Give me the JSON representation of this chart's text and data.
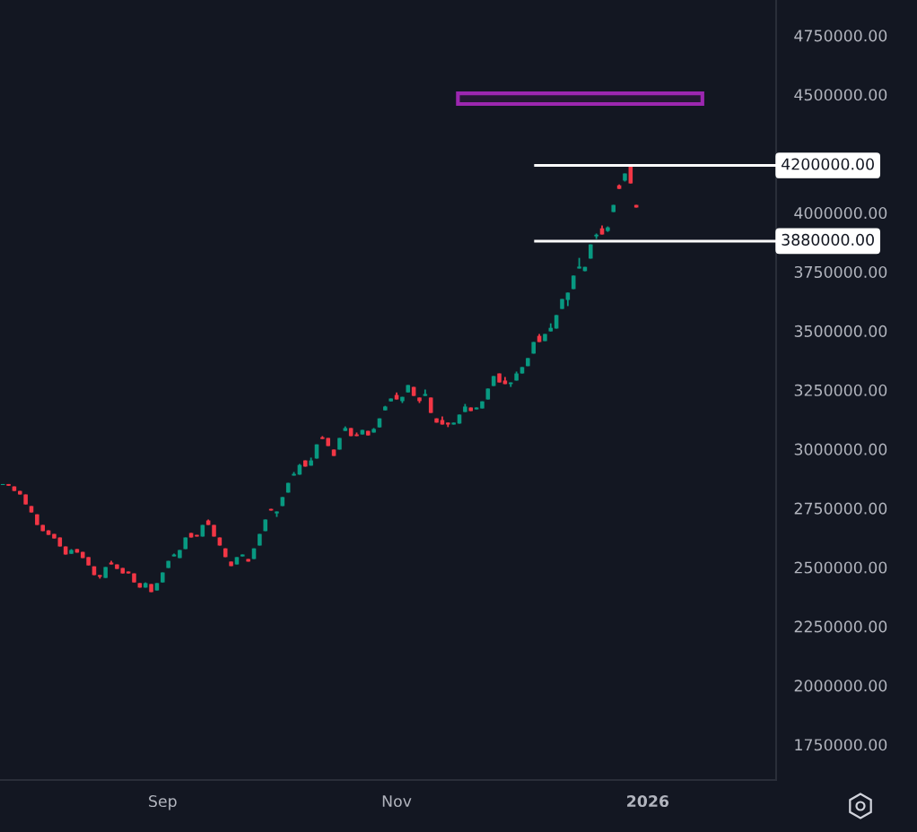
{
  "chart_data": {
    "type": "candlestick",
    "categories": [
      null,
      null,
      null,
      null,
      null,
      null,
      null,
      null,
      null,
      null,
      null,
      null,
      null,
      null,
      null,
      null,
      null,
      null,
      null,
      null,
      null,
      null,
      null,
      null,
      null,
      null,
      null,
      null,
      "Sep",
      null,
      null,
      null,
      null,
      null,
      null,
      null,
      null,
      null,
      null,
      null,
      null,
      null,
      null,
      null,
      null,
      null,
      null,
      null,
      null,
      null,
      null,
      null,
      null,
      null,
      null,
      null,
      null,
      null,
      null,
      null,
      null,
      null,
      null,
      null,
      null,
      null,
      null,
      null,
      null,
      "Nov",
      null,
      null,
      null,
      null,
      null,
      null,
      null,
      null,
      null,
      null,
      null,
      null,
      null,
      null,
      null,
      null,
      null,
      null,
      null,
      null,
      null,
      null,
      null,
      null,
      null,
      null,
      null,
      null,
      null,
      null,
      null,
      null,
      null,
      null,
      null,
      null,
      null,
      null,
      null,
      null,
      null,
      null,
      null,
      "2026",
      null,
      null,
      null,
      null,
      null,
      null,
      null,
      null,
      null,
      null,
      null,
      null,
      null,
      null,
      null,
      null,
      null,
      null,
      null,
      null,
      null,
      null
    ],
    "ohlc": [
      [
        2848000,
        2852000,
        2848000,
        2852000
      ],
      [
        2852000,
        2852000,
        2845000,
        2845000
      ],
      [
        2842000,
        2842000,
        2823000,
        2823000
      ],
      [
        2823000,
        2823000,
        2808000,
        2808000
      ],
      [
        2808000,
        2808000,
        2766000,
        2766000
      ],
      [
        2759000,
        2759000,
        2732000,
        2732000
      ],
      [
        2724000,
        2724000,
        2679000,
        2679000
      ],
      [
        2679000,
        2679000,
        2653000,
        2653000
      ],
      [
        2656000,
        2656000,
        2637000,
        2637000
      ],
      [
        2641000,
        2641000,
        2622000,
        2622000
      ],
      [
        2626000,
        2626000,
        2588000,
        2588000
      ],
      [
        2588000,
        2588000,
        2554000,
        2554000
      ],
      [
        2557000,
        2577000,
        2557000,
        2573000
      ],
      [
        2577000,
        2577000,
        2562000,
        2562000
      ],
      [
        2565000,
        2565000,
        2539000,
        2539000
      ],
      [
        2543000,
        2543000,
        2508000,
        2508000
      ],
      [
        2504000,
        2504000,
        2467000,
        2467000
      ],
      [
        2467000,
        2467000,
        2452000,
        2460000
      ],
      [
        2455000,
        2501000,
        2455000,
        2501000
      ],
      [
        2520000,
        2527000,
        2512000,
        2512000
      ],
      [
        2512000,
        2512000,
        2493000,
        2493000
      ],
      [
        2497000,
        2497000,
        2474000,
        2474000
      ],
      [
        2482000,
        2482000,
        2474000,
        2474000
      ],
      [
        2474000,
        2474000,
        2436000,
        2436000
      ],
      [
        2433000,
        2433000,
        2414000,
        2414000
      ],
      [
        2414000,
        2436000,
        2414000,
        2433000
      ],
      [
        2429000,
        2429000,
        2395000,
        2395000
      ],
      [
        2402000,
        2433000,
        2402000,
        2433000
      ],
      [
        2436000,
        2478000,
        2436000,
        2478000
      ],
      [
        2497000,
        2527000,
        2497000,
        2527000
      ],
      [
        2546000,
        2558000,
        2546000,
        2554000
      ],
      [
        2539000,
        2573000,
        2539000,
        2573000
      ],
      [
        2577000,
        2626000,
        2577000,
        2626000
      ],
      [
        2645000,
        2645000,
        2626000,
        2626000
      ],
      [
        2637000,
        2637000,
        2630000,
        2630000
      ],
      [
        2630000,
        2679000,
        2630000,
        2679000
      ],
      [
        2698000,
        2702000,
        2679000,
        2679000
      ],
      [
        2679000,
        2679000,
        2630000,
        2630000
      ],
      [
        2626000,
        2626000,
        2592000,
        2592000
      ],
      [
        2580000,
        2580000,
        2543000,
        2543000
      ],
      [
        2524000,
        2524000,
        2505000,
        2505000
      ],
      [
        2512000,
        2543000,
        2512000,
        2543000
      ],
      [
        2546000,
        2554000,
        2546000,
        2554000
      ],
      [
        2535000,
        2535000,
        2524000,
        2524000
      ],
      [
        2535000,
        2580000,
        2535000,
        2580000
      ],
      [
        2592000,
        2641000,
        2592000,
        2641000
      ],
      [
        2653000,
        2702000,
        2653000,
        2702000
      ],
      [
        2747000,
        2747000,
        2740000,
        2740000
      ],
      [
        2728000,
        2736000,
        2713000,
        2736000
      ],
      [
        2759000,
        2797000,
        2759000,
        2797000
      ],
      [
        2816000,
        2857000,
        2816000,
        2857000
      ],
      [
        2888000,
        2903000,
        2888000,
        2895000
      ],
      [
        2892000,
        2937000,
        2892000,
        2933000
      ],
      [
        2952000,
        2952000,
        2926000,
        2926000
      ],
      [
        2930000,
        2964000,
        2930000,
        2952000
      ],
      [
        2960000,
        3020000,
        2960000,
        3020000
      ],
      [
        3050000,
        3055000,
        3043000,
        3043000
      ],
      [
        3047000,
        3047000,
        3013000,
        3013000
      ],
      [
        2998000,
        2998000,
        2971000,
        2971000
      ],
      [
        2998000,
        3047000,
        2998000,
        3047000
      ],
      [
        3077000,
        3096000,
        3077000,
        3089000
      ],
      [
        3089000,
        3089000,
        3055000,
        3055000
      ],
      [
        3062000,
        3070000,
        3055000,
        3055000
      ],
      [
        3062000,
        3081000,
        3062000,
        3081000
      ],
      [
        3077000,
        3077000,
        3058000,
        3058000
      ],
      [
        3070000,
        3089000,
        3070000,
        3085000
      ],
      [
        3092000,
        3130000,
        3092000,
        3130000
      ],
      [
        3164000,
        3183000,
        3164000,
        3180000
      ],
      [
        3202000,
        3214000,
        3202000,
        3214000
      ],
      [
        3229000,
        3240000,
        3210000,
        3210000
      ],
      [
        3203000,
        3221000,
        3195000,
        3221000
      ],
      [
        3240000,
        3271000,
        3240000,
        3271000
      ],
      [
        3263000,
        3263000,
        3225000,
        3225000
      ],
      [
        3218000,
        3218000,
        3195000,
        3203000
      ],
      [
        3225000,
        3252000,
        3225000,
        3233000
      ],
      [
        3218000,
        3218000,
        3153000,
        3153000
      ],
      [
        3130000,
        3130000,
        3112000,
        3112000
      ],
      [
        3123000,
        3138000,
        3104000,
        3104000
      ],
      [
        3112000,
        3112000,
        3093000,
        3104000
      ],
      [
        3104000,
        3112000,
        3104000,
        3112000
      ],
      [
        3108000,
        3146000,
        3108000,
        3146000
      ],
      [
        3157000,
        3191000,
        3157000,
        3180000
      ],
      [
        3176000,
        3176000,
        3161000,
        3161000
      ],
      [
        3168000,
        3176000,
        3168000,
        3176000
      ],
      [
        3172000,
        3202000,
        3172000,
        3202000
      ],
      [
        3210000,
        3256000,
        3210000,
        3256000
      ],
      [
        3267000,
        3309000,
        3267000,
        3309000
      ],
      [
        3320000,
        3320000,
        3282000,
        3282000
      ],
      [
        3290000,
        3305000,
        3275000,
        3275000
      ],
      [
        3275000,
        3282000,
        3263000,
        3282000
      ],
      [
        3290000,
        3328000,
        3290000,
        3320000
      ],
      [
        3320000,
        3347000,
        3320000,
        3347000
      ],
      [
        3351000,
        3385000,
        3351000,
        3385000
      ],
      [
        3404000,
        3453000,
        3404000,
        3453000
      ],
      [
        3479000,
        3487000,
        3453000,
        3453000
      ],
      [
        3457000,
        3487000,
        3457000,
        3487000
      ],
      [
        3498000,
        3532000,
        3498000,
        3513000
      ],
      [
        3510000,
        3567000,
        3510000,
        3567000
      ],
      [
        3593000,
        3635000,
        3593000,
        3635000
      ],
      [
        3631000,
        3662000,
        3605000,
        3662000
      ],
      [
        3677000,
        3734000,
        3677000,
        3734000
      ],
      [
        3764000,
        3809000,
        3764000,
        3772000
      ],
      [
        3753000,
        3771000,
        3753000,
        3771000
      ],
      [
        3806000,
        3866000,
        3806000,
        3866000
      ],
      [
        3900000,
        3912000,
        3889000,
        3907000
      ],
      [
        3934000,
        3946000,
        3908000,
        3908000
      ],
      [
        3923000,
        3942000,
        3919000,
        3938000
      ],
      [
        4003000,
        4033000,
        4003000,
        4033000
      ],
      [
        4116000,
        4120000,
        4101000,
        4101000
      ],
      [
        4136000,
        4166000,
        4132000,
        4166000
      ],
      [
        4204000,
        4204000,
        4124000,
        4124000
      ],
      [
        4033000,
        4033000,
        4022000,
        4022000
      ],
      null,
      null,
      null,
      null,
      null,
      null,
      null,
      null,
      null,
      null,
      null,
      null,
      null,
      null,
      null,
      null,
      null,
      null,
      null,
      null,
      null,
      null,
      null,
      null
    ],
    "colors": [
      "#089981",
      "#f23645",
      "#f23645",
      "#f23645",
      "#f23645",
      "#f23645",
      "#f23645",
      "#f23645",
      "#f23645",
      "#f23645",
      "#f23645",
      "#f23645",
      "#089981",
      "#f23645",
      "#f23645",
      "#f23645",
      "#f23645",
      "#f23645",
      "#089981",
      "#f23645",
      "#f23645",
      "#f23645",
      "#f23645",
      "#f23645",
      "#f23645",
      "#089981",
      "#f23645",
      "#089981",
      "#089981",
      "#089981",
      "#089981",
      "#089981",
      "#089981",
      "#f23645",
      "#f23645",
      "#089981",
      "#f23645",
      "#f23645",
      "#f23645",
      "#f23645",
      "#f23645",
      "#089981",
      "#089981",
      "#f23645",
      "#089981",
      "#089981",
      "#089981",
      "#f23645",
      "#089981",
      "#089981",
      "#089981",
      "#089981",
      "#089981",
      "#f23645",
      "#089981",
      "#089981",
      "#f23645",
      "#f23645",
      "#f23645",
      "#089981",
      "#089981",
      "#f23645",
      "#f23645",
      "#089981",
      "#f23645",
      "#089981",
      "#089981",
      "#089981",
      "#089981",
      "#f23645",
      "#089981",
      "#089981",
      "#f23645",
      "#f23645",
      "#089981",
      "#f23645",
      "#f23645",
      "#f23645",
      "#f23645",
      "#089981",
      "#089981",
      "#089981",
      "#f23645",
      "#089981",
      "#089981",
      "#089981",
      "#089981",
      "#f23645",
      "#f23645",
      "#089981",
      "#089981",
      "#089981",
      "#089981",
      "#089981",
      "#f23645",
      "#089981",
      "#089981",
      "#089981",
      "#089981",
      "#089981",
      "#089981",
      "#089981",
      "#089981",
      "#089981",
      "#089981",
      "#f23645",
      "#089981",
      "#089981",
      "#f23645",
      "#089981",
      "#f23645",
      "#f23645",
      null,
      null,
      null,
      null,
      null,
      null,
      null,
      null,
      null,
      null,
      null,
      null,
      null,
      null,
      null,
      null,
      null,
      null,
      null,
      null,
      null,
      null,
      null,
      null
    ],
    "ylim": [
      1600000,
      4900000
    ],
    "yticks": [
      {
        "value": 1750000,
        "label": "1750000.00"
      },
      {
        "value": 2000000,
        "label": "2000000.00"
      },
      {
        "value": 2250000,
        "label": "2250000.00"
      },
      {
        "value": 2500000,
        "label": "2500000.00"
      },
      {
        "value": 2750000,
        "label": "2750000.00"
      },
      {
        "value": 3000000,
        "label": "3000000.00"
      },
      {
        "value": 3250000,
        "label": "3250000.00"
      },
      {
        "value": 3500000,
        "label": "3500000.00"
      },
      {
        "value": 3750000,
        "label": "3750000.00"
      },
      {
        "value": 4000000,
        "label": "4000000.00"
      },
      {
        "value": 4500000,
        "label": "4500000.00"
      },
      {
        "value": 4750000,
        "label": "4750000.00"
      }
    ],
    "ref_lines": [
      {
        "axis": "y",
        "value": 4200000,
        "label": "4200000.00",
        "color": "#ffffff"
      },
      {
        "axis": "y",
        "value": 3880000,
        "label": "3880000.00",
        "color": "#ffffff"
      }
    ],
    "bands": [
      {
        "axis": "y",
        "from": 4460000,
        "to": 4505000,
        "color": "#9c27b0"
      }
    ]
  }
}
